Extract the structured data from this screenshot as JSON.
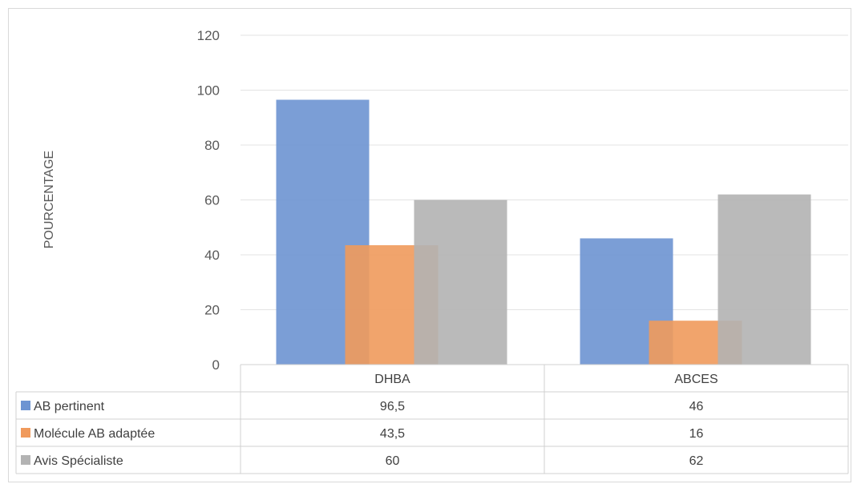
{
  "chart_data": {
    "type": "bar",
    "ylabel": "POURCENTAGE",
    "ylim": [
      0,
      120
    ],
    "yticks": [
      "0",
      "20",
      "40",
      "60",
      "80",
      "100",
      "120"
    ],
    "grid": true,
    "legend": "data-table",
    "categories": [
      "DHBA",
      "ABCES"
    ],
    "series": [
      {
        "name": "AB pertinent",
        "values": [
          96.5,
          46
        ],
        "labels": [
          "96,5",
          "46"
        ],
        "color": "#6d94d2"
      },
      {
        "name": "Molécule AB adaptée",
        "values": [
          43.5,
          16
        ],
        "labels": [
          "43,5",
          "16"
        ],
        "color": "#f09a5c"
      },
      {
        "name": "Avis Spécialiste",
        "values": [
          60,
          62
        ],
        "labels": [
          "60",
          "62"
        ],
        "color": "#b3b3b3"
      }
    ]
  }
}
